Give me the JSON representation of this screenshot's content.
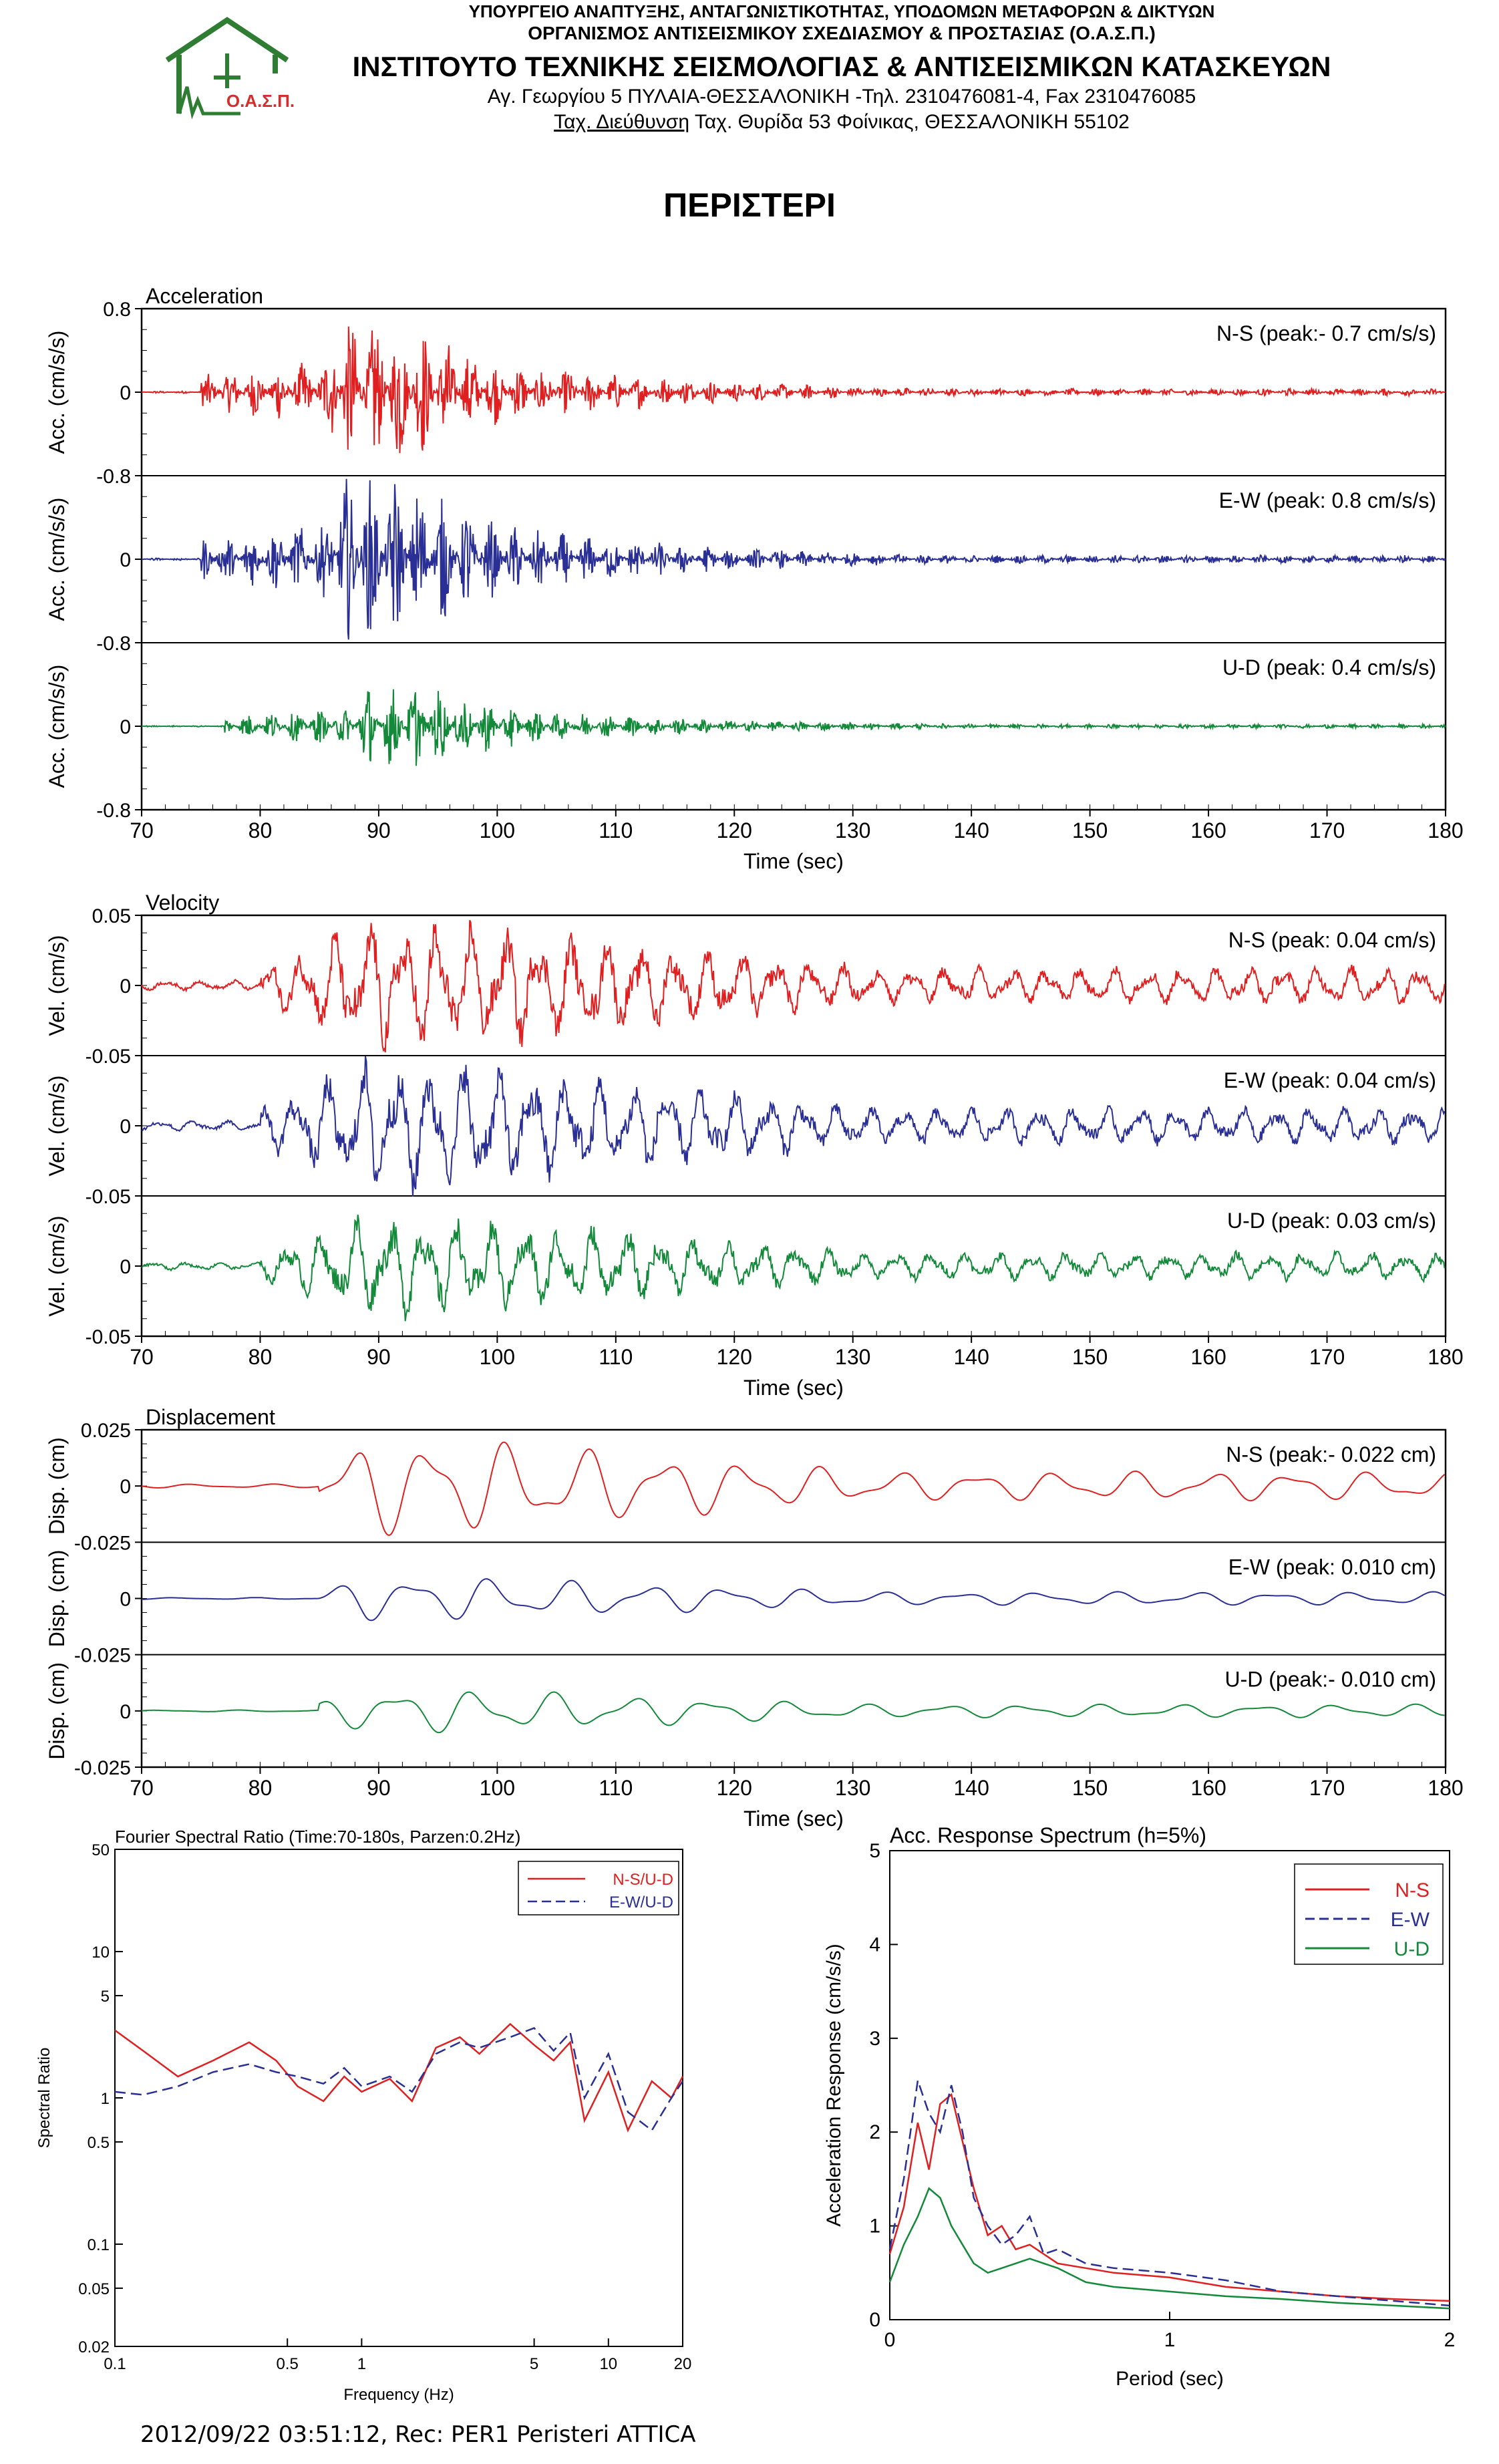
{
  "header": {
    "ministry": "ΥΠΟΥΡΓΕΙΟ ΑΝΑΠΤΥΞΗΣ, ΑΝΤΑΓΩΝΙΣΤΙΚΟΤΗΤΑΣ, ΥΠΟΔΟΜΩΝ ΜΕΤΑΦΟΡΩΝ & ΔΙΚΤΥΩΝ",
    "organization": "ΟΡΓΑΝΙΣΜΟΣ ΑΝΤΙΣΕΙΣΜΙΚΟΥ ΣΧΕΔΙΑΣΜΟΥ & ΠΡΟΣΤΑΣΙΑΣ (Ο.Α.Σ.Π.)",
    "institute": "ΙΝΣΤΙΤΟΥΤΟ ΤΕΧΝΙΚΗΣ ΣΕΙΣΜΟΛΟΓΙΑΣ & ΑΝΤΙΣΕΙΣΜΙΚΩΝ ΚΑΤΑΣΚΕΥΩΝ",
    "address": "Αγ. Γεωργίου 5 ΠΥΛΑΙΑ-ΘΕΣΣΑΛΟΝΙΚΗ -Τηλ. 2310476081-4, Fax 2310476085",
    "postal_label": "Ταχ. Διεύθυνση",
    "postal": " Ταχ. Θυρίδα 53 Φοίνικας, ΘΕΣΣΑΛΟΝΙΚΗ 55102",
    "logo_text": "Ο.Α.Σ.Π."
  },
  "title": "ΠΕΡΙΣΤΕΡΙ",
  "footer": "2012/09/22 03:51:12, Rec: PER1 Peristeri ATTICA",
  "colors": {
    "ns": "#e02020",
    "ew": "#2a2f95",
    "ud": "#138a3a",
    "logo": "#2e7d32",
    "logo_text": "#d32f2f"
  },
  "chart_data": [
    {
      "type": "line",
      "group": "time_histories",
      "time_axis": {
        "label": "Time (sec)",
        "ticks": [
          70,
          80,
          90,
          100,
          110,
          120,
          130,
          140,
          150,
          160,
          170,
          180
        ],
        "xlim": [
          70,
          180
        ]
      },
      "panels": [
        {
          "title": "Acceleration",
          "ylabel": "Acc. (cm/s/s)",
          "ylim": [
            -0.8,
            0.8
          ],
          "tick_labels": [
            "0.8",
            "0",
            "-0.8",
            "0",
            "-0.8",
            "0",
            "-0.8"
          ],
          "series": [
            {
              "name": "N-S",
              "label": "N-S (peak:- 0.7 cm/s/s)",
              "peak": -0.7
            },
            {
              "name": "E-W",
              "label": "E-W (peak: 0.8 cm/s/s)",
              "peak": 0.8
            },
            {
              "name": "U-D",
              "label": "U-D (peak: 0.4 cm/s/s)",
              "peak": 0.4
            }
          ]
        },
        {
          "title": "Velocity",
          "ylabel": "Vel. (cm/s)",
          "ylim": [
            -0.05,
            0.05
          ],
          "tick_labels": [
            "0.05",
            "0",
            "-0.05",
            "0",
            "-0.05",
            "0",
            "-0.05"
          ],
          "series": [
            {
              "name": "N-S",
              "label": "N-S (peak: 0.04 cm/s)",
              "peak": 0.04
            },
            {
              "name": "E-W",
              "label": "E-W (peak: 0.04 cm/s)",
              "peak": 0.04
            },
            {
              "name": "U-D",
              "label": "U-D (peak: 0.03 cm/s)",
              "peak": 0.03
            }
          ]
        },
        {
          "title": "Displacement",
          "ylabel": "Disp. (cm)",
          "ylim": [
            -0.025,
            0.025
          ],
          "tick_labels": [
            "0.025",
            "0",
            "-0.025",
            "0",
            "-0.025",
            "0",
            "-0.025"
          ],
          "series": [
            {
              "name": "N-S",
              "label": "N-S (peak:- 0.022 cm)",
              "peak": -0.022
            },
            {
              "name": "E-W",
              "label": "E-W (peak: 0.010 cm)",
              "peak": 0.01
            },
            {
              "name": "U-D",
              "label": "U-D (peak:- 0.010 cm)",
              "peak": -0.01
            }
          ]
        }
      ]
    },
    {
      "type": "line",
      "title": "Fourier Spectral Ratio (Time:70-180s, Parzen:0.2Hz)",
      "xlabel": "Frequency (Hz)",
      "ylabel": "Spectral Ratio",
      "x_scale": "log",
      "y_scale": "log",
      "xlim": [
        0.1,
        20
      ],
      "ylim": [
        0.02,
        50
      ],
      "x_ticks": [
        "0.1",
        "0.5",
        "1",
        "5",
        "10",
        "20"
      ],
      "y_ticks": [
        "50",
        "10",
        "5",
        "1",
        "0.5",
        "0.1",
        "0.05",
        "0.02"
      ],
      "legend": "top-right",
      "series": [
        {
          "name": "N-S/U-D",
          "x": [
            0.1,
            0.13,
            0.18,
            0.25,
            0.35,
            0.45,
            0.55,
            0.7,
            0.85,
            1.0,
            1.3,
            1.6,
            2.0,
            2.5,
            3.0,
            4.0,
            5.0,
            6.0,
            7.0,
            8.0,
            10.0,
            12.0,
            15.0,
            18.0,
            20.0
          ],
          "y": [
            2.9,
            2.1,
            1.4,
            1.8,
            2.4,
            1.8,
            1.2,
            0.95,
            1.4,
            1.1,
            1.35,
            0.95,
            2.2,
            2.6,
            2.0,
            3.2,
            2.3,
            1.8,
            2.4,
            0.7,
            1.5,
            0.6,
            1.3,
            1.0,
            1.4
          ]
        },
        {
          "name": "E-W/U-D",
          "x": [
            0.1,
            0.13,
            0.18,
            0.25,
            0.35,
            0.45,
            0.55,
            0.7,
            0.85,
            1.0,
            1.3,
            1.6,
            2.0,
            2.5,
            3.0,
            4.0,
            5.0,
            6.0,
            7.0,
            8.0,
            10.0,
            12.0,
            15.0,
            18.0,
            20.0
          ],
          "y": [
            1.1,
            1.05,
            1.2,
            1.5,
            1.7,
            1.5,
            1.4,
            1.25,
            1.6,
            1.2,
            1.4,
            1.1,
            2.0,
            2.4,
            2.2,
            2.6,
            3.0,
            2.1,
            2.8,
            1.0,
            2.0,
            0.8,
            0.6,
            1.0,
            1.3
          ]
        }
      ]
    },
    {
      "type": "line",
      "title": "Acc. Response Spectrum (h=5%)",
      "xlabel": "Period (sec)",
      "ylabel": "Acceleration Response (cm/s/s)",
      "xlim": [
        0,
        2
      ],
      "ylim": [
        0,
        5
      ],
      "x_ticks": [
        "0",
        "1",
        "2"
      ],
      "y_ticks": [
        "0",
        "1",
        "2",
        "3",
        "4",
        "5"
      ],
      "legend": "top-right",
      "series": [
        {
          "name": "N-S",
          "x": [
            0.0,
            0.05,
            0.1,
            0.14,
            0.18,
            0.22,
            0.26,
            0.3,
            0.35,
            0.4,
            0.45,
            0.5,
            0.6,
            0.7,
            0.8,
            1.0,
            1.2,
            1.4,
            1.6,
            1.8,
            2.0
          ],
          "y": [
            0.7,
            1.2,
            2.1,
            1.6,
            2.3,
            2.4,
            1.9,
            1.4,
            0.9,
            1.0,
            0.75,
            0.8,
            0.6,
            0.55,
            0.5,
            0.45,
            0.35,
            0.3,
            0.25,
            0.22,
            0.2
          ]
        },
        {
          "name": "E-W",
          "x": [
            0.0,
            0.05,
            0.1,
            0.14,
            0.18,
            0.22,
            0.26,
            0.3,
            0.35,
            0.4,
            0.45,
            0.5,
            0.55,
            0.6,
            0.7,
            0.8,
            1.0,
            1.2,
            1.4,
            1.6,
            1.8,
            2.0
          ],
          "y": [
            0.75,
            1.5,
            2.55,
            2.2,
            2.0,
            2.5,
            2.0,
            1.3,
            1.0,
            0.8,
            0.9,
            1.1,
            0.7,
            0.75,
            0.6,
            0.55,
            0.5,
            0.42,
            0.3,
            0.25,
            0.2,
            0.15
          ]
        },
        {
          "name": "U-D",
          "x": [
            0.0,
            0.05,
            0.1,
            0.14,
            0.18,
            0.22,
            0.26,
            0.3,
            0.35,
            0.4,
            0.45,
            0.5,
            0.6,
            0.7,
            0.8,
            1.0,
            1.2,
            1.4,
            1.6,
            1.8,
            2.0
          ],
          "y": [
            0.4,
            0.8,
            1.1,
            1.4,
            1.3,
            1.0,
            0.8,
            0.6,
            0.5,
            0.55,
            0.6,
            0.65,
            0.55,
            0.4,
            0.35,
            0.3,
            0.25,
            0.22,
            0.18,
            0.15,
            0.12
          ]
        }
      ]
    }
  ]
}
